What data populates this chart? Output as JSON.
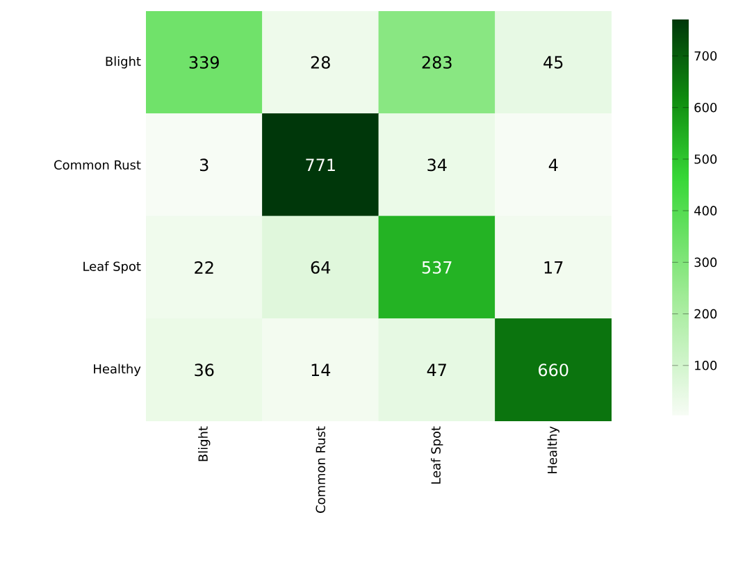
{
  "chart_data": {
    "type": "heatmap",
    "categories": [
      "Blight",
      "Common Rust",
      "Leaf Spot",
      "Healthy"
    ],
    "y_categories": [
      "Blight",
      "Common Rust",
      "Leaf Spot",
      "Healthy"
    ],
    "cells": [
      [
        339,
        28,
        283,
        45
      ],
      [
        3,
        771,
        34,
        4
      ],
      [
        22,
        64,
        537,
        17
      ],
      [
        36,
        14,
        47,
        660
      ]
    ],
    "clim": [
      3,
      771
    ],
    "cticks": [
      100,
      200,
      300,
      400,
      500,
      600,
      700
    ],
    "data_labels": true
  }
}
